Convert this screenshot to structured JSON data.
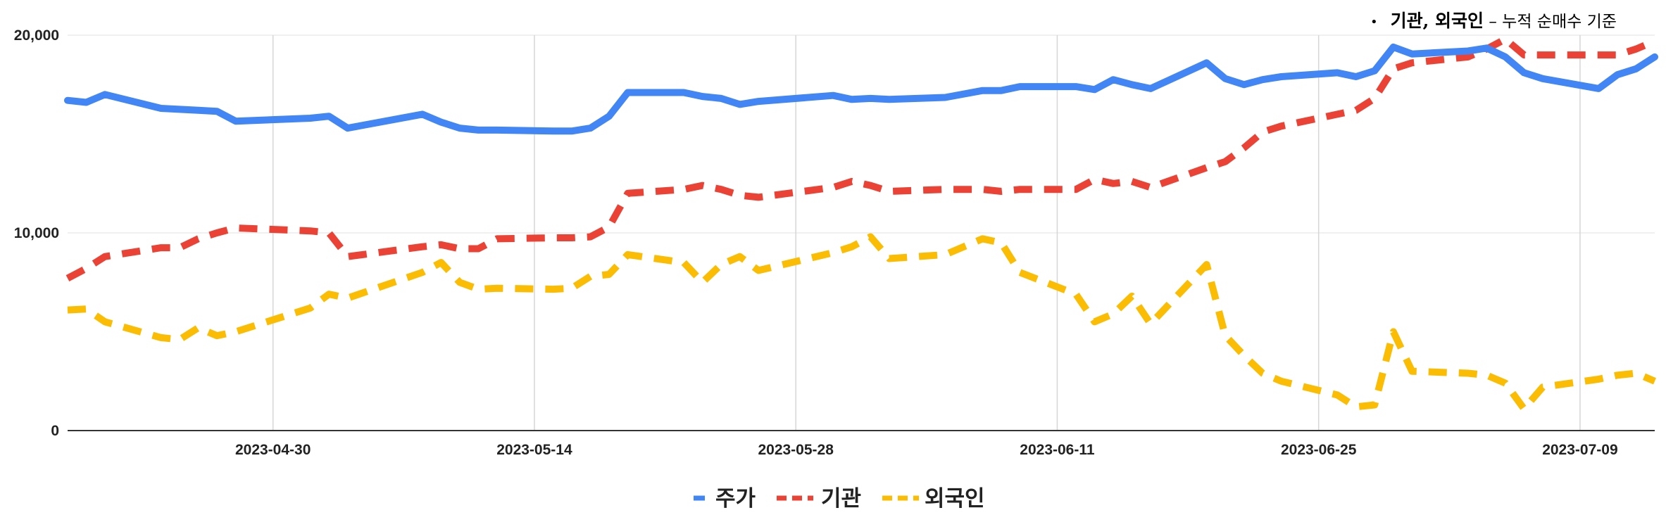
{
  "note": {
    "bullet": "•",
    "main": "기관, 외국인",
    "sub": " – 누적 순매수 기준"
  },
  "chart_data": {
    "type": "line",
    "title": "",
    "xlabel": "",
    "ylabel": "",
    "ylim": [
      0,
      20000
    ],
    "yticks": [
      0,
      10000,
      20000
    ],
    "ytick_labels": [
      "0",
      "10,000",
      "20,000"
    ],
    "xticks": [
      "2023-04-30",
      "2023-05-14",
      "2023-05-28",
      "2023-06-11",
      "2023-06-25",
      "2023-07-09"
    ],
    "grid": true,
    "legend_position": "bottom",
    "x": [
      "2023-04-19",
      "2023-04-20",
      "2023-04-21",
      "2023-04-24",
      "2023-04-25",
      "2023-04-26",
      "2023-04-27",
      "2023-04-28",
      "2023-05-02",
      "2023-05-03",
      "2023-05-04",
      "2023-05-08",
      "2023-05-09",
      "2023-05-10",
      "2023-05-11",
      "2023-05-12",
      "2023-05-15",
      "2023-05-16",
      "2023-05-17",
      "2023-05-18",
      "2023-05-19",
      "2023-05-22",
      "2023-05-23",
      "2023-05-24",
      "2023-05-25",
      "2023-05-26",
      "2023-05-30",
      "2023-05-31",
      "2023-06-01",
      "2023-06-02",
      "2023-06-05",
      "2023-06-07",
      "2023-06-08",
      "2023-06-09",
      "2023-06-12",
      "2023-06-13",
      "2023-06-14",
      "2023-06-15",
      "2023-06-16",
      "2023-06-19",
      "2023-06-20",
      "2023-06-21",
      "2023-06-22",
      "2023-06-23",
      "2023-06-26",
      "2023-06-27",
      "2023-06-28",
      "2023-06-29",
      "2023-06-30",
      "2023-07-03",
      "2023-07-04",
      "2023-07-05",
      "2023-07-06",
      "2023-07-07",
      "2023-07-10",
      "2023-07-11",
      "2023-07-12",
      "2023-07-13"
    ],
    "series": [
      {
        "name": "주가",
        "color": "#4285f4",
        "dash": "solid",
        "values": [
          16700,
          16600,
          17000,
          16300,
          16250,
          16200,
          16150,
          15650,
          15800,
          15900,
          15300,
          16000,
          15600,
          15300,
          15200,
          15200,
          15150,
          15150,
          15300,
          15900,
          17100,
          17100,
          16900,
          16800,
          16500,
          16650,
          16950,
          16750,
          16800,
          16750,
          16850,
          17200,
          17200,
          17400,
          17400,
          17250,
          17750,
          17500,
          17300,
          18600,
          17800,
          17500,
          17750,
          17900,
          18100,
          17900,
          18200,
          19400,
          19050,
          19200,
          19350,
          18900,
          18100,
          17800,
          17300,
          18000,
          18300,
          18900
        ]
      },
      {
        "name": "기관",
        "color": "#ea4335",
        "dash": "dashed",
        "values": [
          7700,
          8200,
          8800,
          9250,
          9250,
          9700,
          10000,
          10250,
          10100,
          10000,
          8800,
          9300,
          9400,
          9200,
          9200,
          9700,
          9750,
          9750,
          9800,
          10300,
          12000,
          12200,
          12400,
          12200,
          11900,
          11800,
          12300,
          12600,
          12400,
          12100,
          12200,
          12200,
          12100,
          12200,
          12200,
          12700,
          12500,
          12600,
          12300,
          13300,
          13600,
          14300,
          15100,
          15400,
          16000,
          16200,
          16800,
          18300,
          18600,
          18900,
          19300,
          19800,
          19000,
          19000,
          19000,
          19000,
          19300,
          19700
        ]
      },
      {
        "name": "외국인",
        "color": "#fbbc04",
        "dash": "dashed",
        "values": [
          6100,
          6150,
          5500,
          4700,
          4600,
          5200,
          4800,
          5000,
          6200,
          6900,
          6700,
          8000,
          8500,
          7500,
          7150,
          7200,
          7150,
          7200,
          7800,
          7900,
          8900,
          8500,
          7500,
          8400,
          8800,
          8100,
          9000,
          9300,
          9800,
          8700,
          8900,
          9700,
          9500,
          8000,
          6900,
          5500,
          5900,
          6800,
          5400,
          8400,
          4800,
          3800,
          2900,
          2500,
          1800,
          1200,
          1300,
          5000,
          3000,
          2900,
          2800,
          2400,
          1100,
          2200,
          2600,
          2800,
          2900,
          2500
        ]
      }
    ]
  }
}
